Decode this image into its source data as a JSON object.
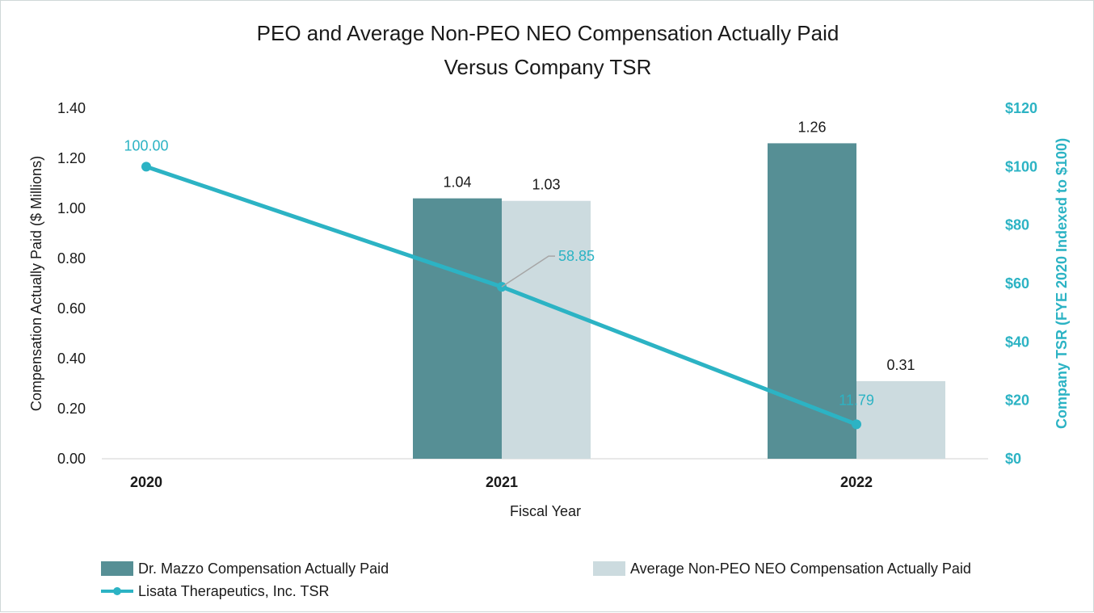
{
  "chart_data": {
    "type": "bar",
    "title": [
      "PEO and Average Non-PEO NEO Compensation Actually Paid",
      "Versus Company TSR"
    ],
    "xlabel": "Fiscal Year",
    "ylabel": "Compensation Actually Paid ($ Millions)",
    "y2label": "Company TSR (FYE 2020 Indexed to $100)",
    "categories": [
      "2020",
      "2021",
      "2022"
    ],
    "ylim": [
      0,
      1.4
    ],
    "yticks": [
      "0.00",
      "0.20",
      "0.40",
      "0.60",
      "0.80",
      "1.00",
      "1.20",
      "1.40"
    ],
    "y2lim": [
      0,
      120
    ],
    "y2ticks": [
      "$0",
      "$20",
      "$40",
      "$60",
      "$80",
      "$100",
      "$120"
    ],
    "series": [
      {
        "name": "Dr. Mazzo Compensation Actually Paid",
        "type": "bar",
        "color": "#568f95",
        "values": [
          null,
          1.04,
          1.26
        ],
        "labels": [
          "",
          "1.04",
          "1.26"
        ]
      },
      {
        "name": "Average Non-PEO NEO Compensation Actually Paid",
        "type": "bar",
        "color": "#ccdbdf",
        "values": [
          null,
          1.03,
          0.31
        ],
        "labels": [
          "",
          "1.03",
          "0.31"
        ]
      },
      {
        "name": "Lisata Therapeutics, Inc. TSR",
        "type": "line",
        "axis": "secondary",
        "color": "#2cb3c4",
        "values": [
          100.0,
          58.85,
          11.79
        ],
        "labels": [
          "100.00",
          "58.85",
          "11.79"
        ]
      }
    ],
    "grid": false,
    "legend_position": "bottom"
  }
}
